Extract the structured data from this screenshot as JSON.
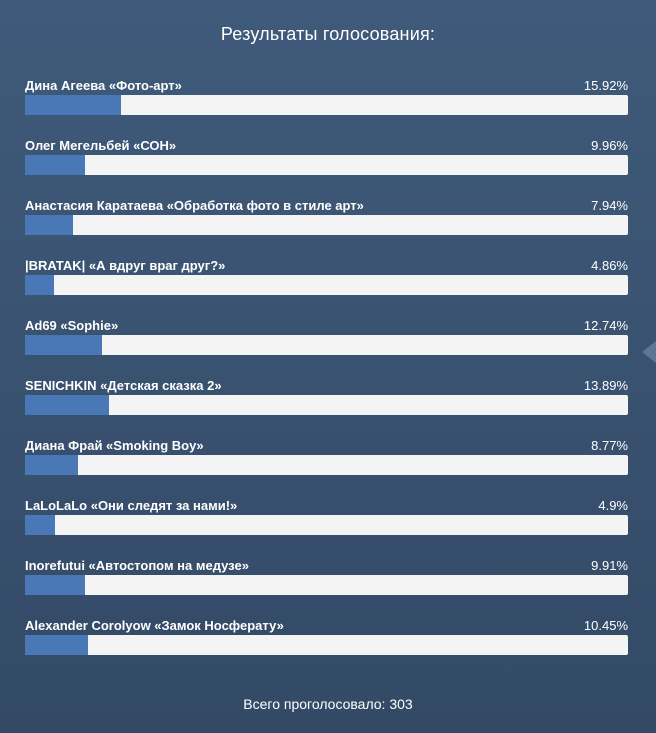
{
  "title": "Результаты голосования:",
  "items": [
    {
      "label": "Дина Агеева «Фото-арт»",
      "percent_text": "15.92%",
      "percent": 15.92
    },
    {
      "label": "Олег Мегельбей «СОН»",
      "percent_text": "9.96%",
      "percent": 9.96
    },
    {
      "label": "Анастасия Каратаева «Обработка фото в стиле арт»",
      "percent_text": "7.94%",
      "percent": 7.94
    },
    {
      "label": "|BRATAK| «А вдруг враг друг?»",
      "percent_text": "4.86%",
      "percent": 4.86
    },
    {
      "label": "Ad69 «Sophie»",
      "percent_text": "12.74%",
      "percent": 12.74
    },
    {
      "label": "SENICHKIN «Детская сказка 2»",
      "percent_text": "13.89%",
      "percent": 13.89
    },
    {
      "label": "Диана Фрай «Smoking Boy»",
      "percent_text": "8.77%",
      "percent": 8.77
    },
    {
      "label": "LaLoLaLo «Они следят за нами!»",
      "percent_text": "4.9%",
      "percent": 4.9
    },
    {
      "label": "Inorefutui «Автостопом на медузе»",
      "percent_text": "9.91%",
      "percent": 9.91
    },
    {
      "label": "Alexander Corolyow «Замок Носферату»",
      "percent_text": "10.45%",
      "percent": 10.45
    }
  ],
  "total_text": "Всего проголосовало: 303",
  "colors": {
    "bar_fill": "#4a77b5",
    "bar_track": "#f4f4f4"
  }
}
